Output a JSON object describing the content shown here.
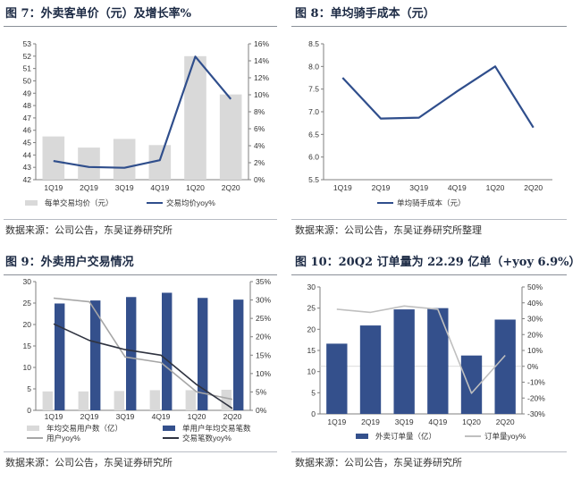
{
  "panels": [
    {
      "title": "图 7：外卖客单价（元）及增长率%",
      "source": "数据来源：公司公告，东吴证券研究所"
    },
    {
      "title": "图 8：单均骑手成本（元）",
      "source": "数据来源：公司公告，东吴证券研究所整理"
    },
    {
      "title": "图 9：外卖用户交易情况",
      "source": "数据来源：公司公告，东吴证券研究所"
    },
    {
      "title": "图 10：20Q2 订单量为 22.29 亿单（+yoy 6.9%）",
      "source": "数据来源：公司公告，东吴证券研究所"
    }
  ],
  "colors": {
    "gray_bar": "#d9d9d9",
    "navy": "#2f4e8c",
    "navy_bar": "#34508c",
    "gray_line": "#a6a6a6",
    "dark_line": "#2f3340",
    "light_line": "#bfbfbf"
  },
  "chart_data": [
    {
      "type": "bar",
      "categories": [
        "1Q19",
        "2Q19",
        "3Q19",
        "4Q19",
        "1Q20",
        "2Q20"
      ],
      "series": [
        {
          "name": "每单交易均价（元）",
          "kind": "bar",
          "axis": "left",
          "color": "#d9d9d9",
          "values": [
            45.5,
            44.6,
            45.3,
            44.8,
            52.0,
            48.9
          ]
        },
        {
          "name": "交易均价yoy%",
          "kind": "line",
          "axis": "right",
          "color": "#2f4e8c",
          "values": [
            2.2,
            1.5,
            1.4,
            2.3,
            14.5,
            9.5
          ]
        }
      ],
      "left_axis": {
        "min": 42,
        "max": 53,
        "step": 1
      },
      "right_axis": {
        "min": 0,
        "max": 16,
        "step": 2,
        "suffix": "%"
      }
    },
    {
      "type": "line",
      "categories": [
        "1Q19",
        "2Q19",
        "3Q19",
        "4Q19",
        "1Q20",
        "2Q20"
      ],
      "series": [
        {
          "name": "单均骑手成本（元）",
          "kind": "line",
          "axis": "left",
          "color": "#2f4e8c",
          "values": [
            7.75,
            6.85,
            6.87,
            7.45,
            8.0,
            6.65
          ]
        }
      ],
      "left_axis": {
        "min": 5.5,
        "max": 8.5,
        "step": 0.5,
        "decimals": 1
      }
    },
    {
      "type": "bar",
      "categories": [
        "1Q19",
        "2Q19",
        "3Q19",
        "4Q19",
        "1Q20",
        "2Q20"
      ],
      "series": [
        {
          "name": "年均交易用户数（亿）",
          "kind": "bar",
          "axis": "left",
          "color": "#d9d9d9",
          "values": [
            4.4,
            4.4,
            4.5,
            4.7,
            4.7,
            4.8
          ]
        },
        {
          "name": "单用户年均交易笔数",
          "kind": "bar",
          "axis": "left",
          "color": "#34508c",
          "values": [
            24.9,
            25.6,
            26.4,
            27.4,
            26.2,
            25.8
          ]
        },
        {
          "name": "用户yoy%",
          "kind": "line",
          "axis": "right",
          "color": "#a6a6a6",
          "values": [
            30.5,
            29.5,
            14.5,
            13.0,
            5.0,
            3.0
          ]
        },
        {
          "name": "交易笔数yoy%",
          "kind": "line",
          "axis": "right",
          "color": "#2f3340",
          "values": [
            23.5,
            19.0,
            16.5,
            15.0,
            7.0,
            0.5
          ]
        }
      ],
      "left_axis": {
        "min": 0,
        "max": 30,
        "step": 5
      },
      "right_axis": {
        "min": 0,
        "max": 35,
        "step": 5,
        "suffix": "%"
      }
    },
    {
      "type": "bar",
      "categories": [
        "1Q19",
        "2Q19",
        "3Q19",
        "4Q19",
        "1Q20",
        "2Q20"
      ],
      "series": [
        {
          "name": "外卖订单量（亿）",
          "kind": "bar",
          "axis": "left",
          "color": "#34508c",
          "values": [
            16.6,
            20.9,
            24.7,
            25.0,
            13.8,
            22.29
          ]
        },
        {
          "name": "订单量yoy%",
          "kind": "line",
          "axis": "right",
          "color": "#bfbfbf",
          "values": [
            36.0,
            34.0,
            38.0,
            36.0,
            -17.0,
            6.9
          ]
        }
      ],
      "left_axis": {
        "min": 0,
        "max": 30,
        "step": 5
      },
      "right_axis": {
        "min": -30,
        "max": 50,
        "step": 10,
        "suffix": "%"
      }
    }
  ]
}
